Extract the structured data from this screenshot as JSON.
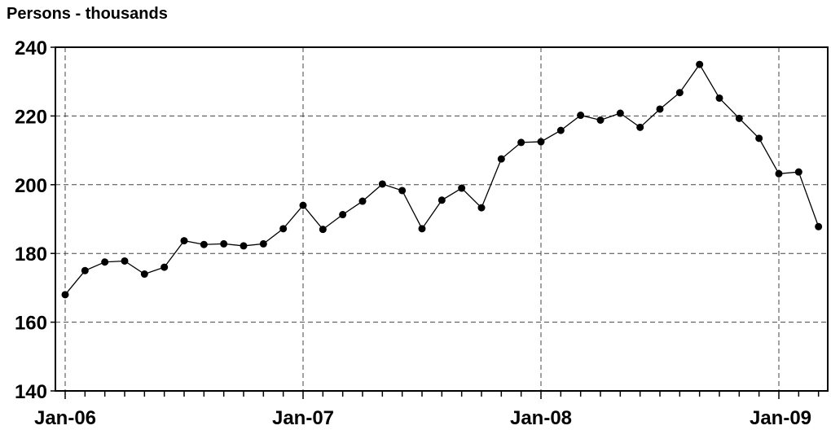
{
  "chart_data": {
    "type": "line",
    "title": "",
    "ylabel": "Persons - thousands",
    "xlabel": "",
    "ylim": [
      140,
      240
    ],
    "y_ticks": [
      "140",
      "160",
      "180",
      "200",
      "220",
      "240"
    ],
    "x_tick_labels": [
      {
        "label": "Jan-06",
        "index": 0
      },
      {
        "label": "Jan-07",
        "index": 12
      },
      {
        "label": "Jan-08",
        "index": 24
      },
      {
        "label": "Jan-09",
        "index": 36
      }
    ],
    "grid": true,
    "series": [
      {
        "values": [
          168,
          175,
          177.5,
          177.8,
          174,
          176,
          183.7,
          182.6,
          182.8,
          182.2,
          182.8,
          187.2,
          194,
          187,
          191.3,
          195.2,
          200.2,
          198.3,
          187.2,
          195.5,
          199,
          193.3,
          207.5,
          212.3,
          212.5,
          215.8,
          220.2,
          218.8,
          220.8,
          216.7,
          222,
          226.8,
          235,
          225.2,
          219.3,
          213.5,
          203.2,
          203.7,
          187.8
        ]
      }
    ],
    "x": [
      "Jan-06",
      "Feb-06",
      "Mar-06",
      "Apr-06",
      "May-06",
      "Jun-06",
      "Jul-06",
      "Aug-06",
      "Sep-06",
      "Oct-06",
      "Nov-06",
      "Dec-06",
      "Jan-07",
      "Feb-07",
      "Mar-07",
      "Apr-07",
      "May-07",
      "Jun-07",
      "Jul-07",
      "Aug-07",
      "Sep-07",
      "Oct-07",
      "Nov-07",
      "Dec-07",
      "Jan-08",
      "Feb-08",
      "Mar-08",
      "Apr-08",
      "May-08",
      "Jun-08",
      "Jul-08",
      "Aug-08",
      "Sep-08",
      "Oct-08",
      "Nov-08",
      "Dec-08",
      "Jan-09",
      "Feb-09",
      "Mar-09"
    ]
  }
}
